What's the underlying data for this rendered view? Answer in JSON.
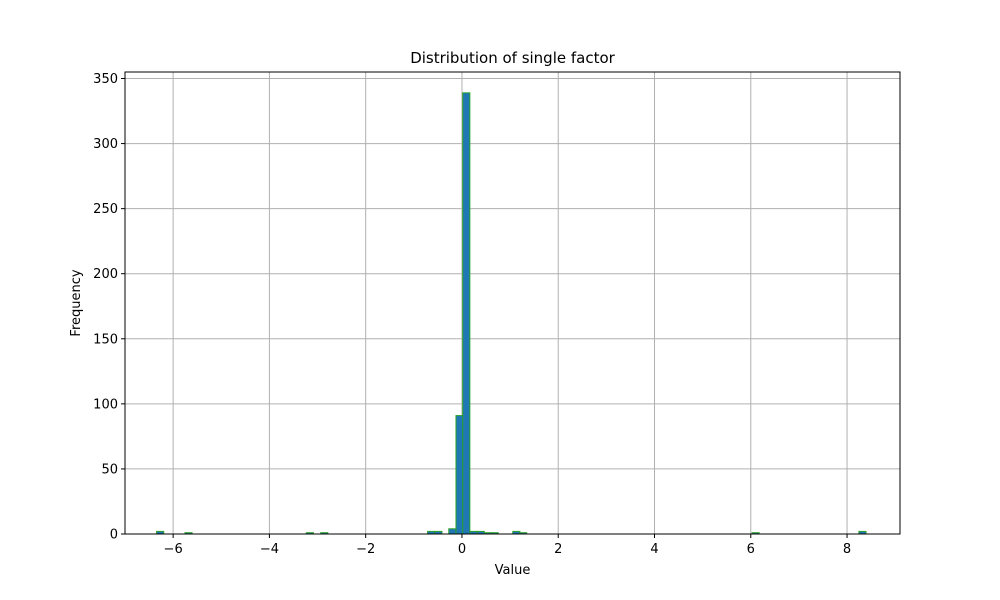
{
  "chart_data": {
    "type": "bar",
    "title": "Distribution of single factor",
    "xlabel": "Value",
    "ylabel": "Frequency",
    "xlim": [
      -7,
      9.1
    ],
    "ylim": [
      0,
      355
    ],
    "grid": true,
    "x_ticks": [
      -6,
      -4,
      -2,
      0,
      2,
      4,
      6,
      8
    ],
    "x_tick_labels": [
      "−6",
      "−4",
      "−2",
      "0",
      "2",
      "4",
      "6",
      "8"
    ],
    "y_ticks": [
      0,
      50,
      100,
      150,
      200,
      250,
      300,
      350
    ],
    "y_tick_labels": [
      "0",
      "50",
      "100",
      "150",
      "200",
      "250",
      "300",
      "350"
    ],
    "bin_width": 0.148,
    "bins": [
      {
        "x": -6.27,
        "value": 2
      },
      {
        "x": -5.68,
        "value": 1
      },
      {
        "x": -3.16,
        "value": 1
      },
      {
        "x": -2.86,
        "value": 1
      },
      {
        "x": -0.64,
        "value": 2
      },
      {
        "x": -0.49,
        "value": 2
      },
      {
        "x": -0.2,
        "value": 4
      },
      {
        "x": -0.05,
        "value": 91
      },
      {
        "x": 0.09,
        "value": 339
      },
      {
        "x": 0.24,
        "value": 2
      },
      {
        "x": 0.39,
        "value": 2
      },
      {
        "x": 0.54,
        "value": 1
      },
      {
        "x": 0.68,
        "value": 1
      },
      {
        "x": 1.13,
        "value": 2
      },
      {
        "x": 1.27,
        "value": 1
      },
      {
        "x": 6.1,
        "value": 1
      },
      {
        "x": 8.32,
        "value": 2
      }
    ],
    "colors": {
      "bar_fill": "#1f77b4",
      "bar_edge": "#2ca02c",
      "grid": "#b0b0b0"
    }
  }
}
